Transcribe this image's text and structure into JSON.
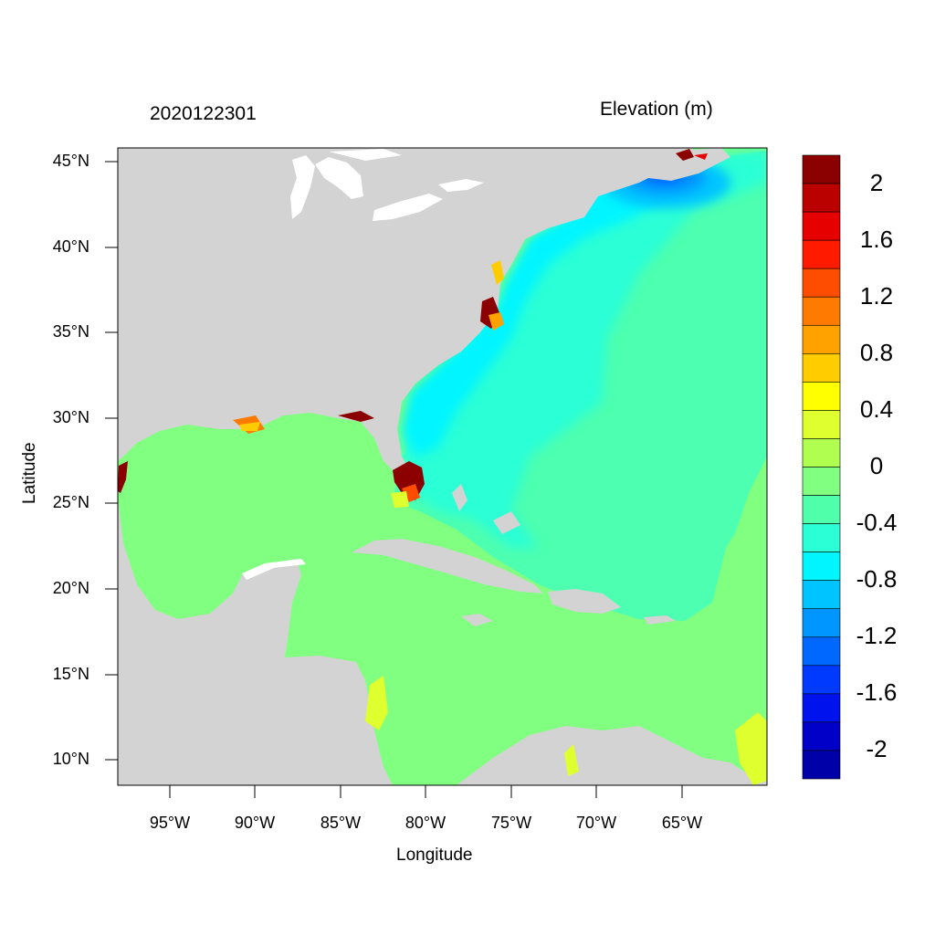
{
  "titles": {
    "left": "2020122301",
    "right": "Elevation (m)"
  },
  "axes": {
    "xlabel": "Longitude",
    "ylabel": "Latitude",
    "lat_ticks": [
      "45°N",
      "40°N",
      "35°N",
      "30°N",
      "25°N",
      "20°N",
      "15°N",
      "10°N"
    ],
    "lon_ticks": [
      "95°W",
      "90°W",
      "85°W",
      "80°W",
      "75°W",
      "70°W",
      "65°W"
    ],
    "lon_range_deg": [
      -98,
      -60
    ],
    "lat_range_deg": [
      8.5,
      46
    ]
  },
  "colorbar": {
    "labels": [
      "2",
      "1.6",
      "1.2",
      "0.8",
      "0.4",
      "0",
      "-0.4",
      "-0.8",
      "-1.2",
      "-1.6",
      "-2"
    ],
    "colors": [
      "#8b0000",
      "#bb0000",
      "#e60000",
      "#ff1a00",
      "#ff4d00",
      "#ff7a00",
      "#ffa200",
      "#ffcc00",
      "#ffff00",
      "#e0ff2e",
      "#b0ff50",
      "#80ff80",
      "#50ffaa",
      "#2affd6",
      "#00f5ff",
      "#00c4ff",
      "#0096ff",
      "#0068ff",
      "#003aff",
      "#0012ee",
      "#0000c8",
      "#0000a8"
    ]
  },
  "map_colors": {
    "land": "#d3d3d3",
    "water_inland": "#ffffff",
    "zero_level": "#80ff80",
    "open_atlantic": "#4dffb0",
    "coastal_atlantic": "#2affd6",
    "nearshore_low": "#00f5ff",
    "gulf_maine_low": "#0068ff",
    "surge_high": "#8b0000"
  }
}
